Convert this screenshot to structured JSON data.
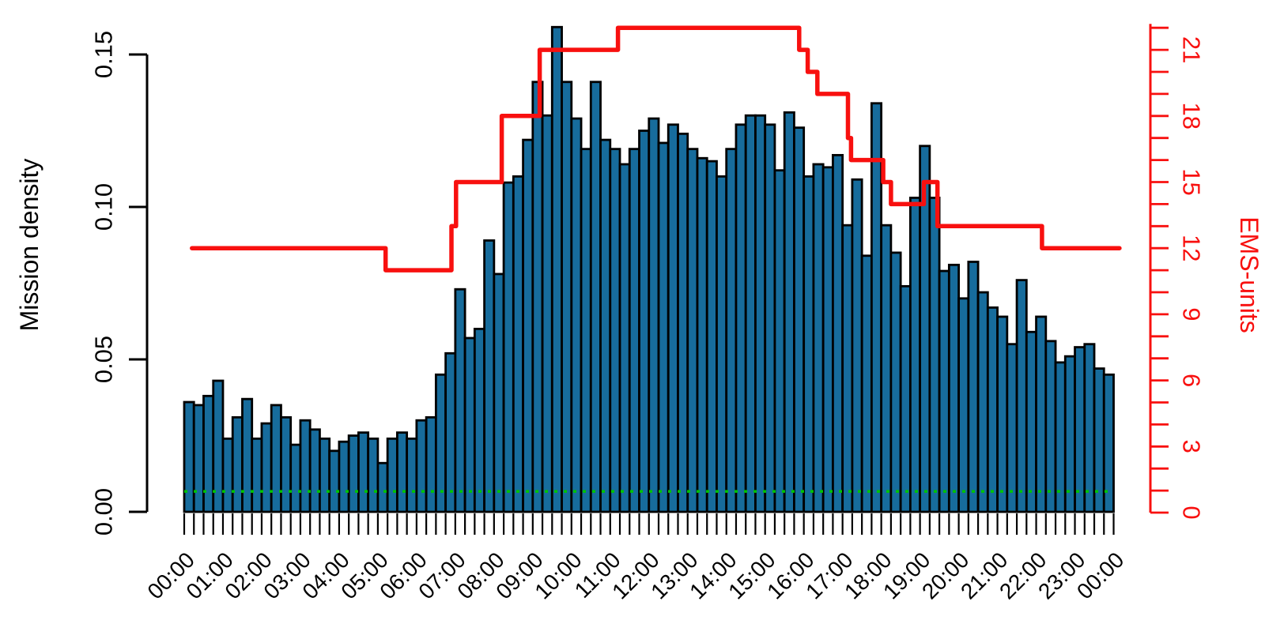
{
  "chart_data": {
    "type": "bar",
    "title": "",
    "left_axis": {
      "label": "Mission density",
      "tick_labels": [
        "0.00",
        "0.05",
        "0.10",
        "0.15"
      ],
      "tick_values": [
        0,
        0.05,
        0.1,
        0.15
      ],
      "range": [
        0,
        0.15
      ]
    },
    "right_axis": {
      "label": "EMS-units",
      "labeled_ticks": [
        0,
        3,
        6,
        9,
        12,
        15,
        18,
        21
      ],
      "minor_tick_step": 1,
      "range": [
        0,
        22
      ]
    },
    "x_axis": {
      "hour_labels": [
        "00:00",
        "01:00",
        "02:00",
        "03:00",
        "04:00",
        "05:00",
        "06:00",
        "07:00",
        "08:00",
        "09:00",
        "10:00",
        "11:00",
        "12:00",
        "13:00",
        "14:00",
        "15:00",
        "16:00",
        "17:00",
        "18:00",
        "19:00",
        "20:00",
        "21:00",
        "22:00",
        "23:00",
        "00:00"
      ],
      "bars_per_hour": 4,
      "interval_minutes": 15
    },
    "bars": {
      "series_name": "Mission density",
      "values": [
        0.036,
        0.035,
        0.038,
        0.043,
        0.024,
        0.031,
        0.037,
        0.024,
        0.029,
        0.035,
        0.031,
        0.022,
        0.03,
        0.027,
        0.024,
        0.02,
        0.023,
        0.025,
        0.026,
        0.024,
        0.016,
        0.024,
        0.026,
        0.024,
        0.03,
        0.031,
        0.045,
        0.052,
        0.073,
        0.057,
        0.06,
        0.089,
        0.078,
        0.108,
        0.11,
        0.122,
        0.141,
        0.13,
        0.159,
        0.141,
        0.129,
        0.119,
        0.141,
        0.122,
        0.119,
        0.114,
        0.119,
        0.125,
        0.129,
        0.121,
        0.127,
        0.124,
        0.119,
        0.116,
        0.115,
        0.11,
        0.119,
        0.127,
        0.13,
        0.13,
        0.127,
        0.112,
        0.131,
        0.126,
        0.11,
        0.114,
        0.113,
        0.117,
        0.094,
        0.109,
        0.084,
        0.134,
        0.094,
        0.085,
        0.074,
        0.103,
        0.12,
        0.103,
        0.079,
        0.081,
        0.07,
        0.082,
        0.072,
        0.067,
        0.064,
        0.055,
        0.076,
        0.059,
        0.064,
        0.056,
        0.049,
        0.051,
        0.054,
        0.055,
        0.047,
        0.045
      ]
    },
    "ems_line": {
      "series_name": "EMS-units",
      "start_t": 0.2,
      "end_t": 24.15,
      "steps": [
        {
          "t": 0.2,
          "v": 12
        },
        {
          "t": 5.2,
          "v": 11
        },
        {
          "t": 6.9,
          "v": 13
        },
        {
          "t": 7.02,
          "v": 15
        },
        {
          "t": 8.2,
          "v": 18
        },
        {
          "t": 9.18,
          "v": 21
        },
        {
          "t": 11.2,
          "v": 22
        },
        {
          "t": 15.88,
          "v": 21
        },
        {
          "t": 16.1,
          "v": 20
        },
        {
          "t": 16.35,
          "v": 19
        },
        {
          "t": 17.14,
          "v": 17
        },
        {
          "t": 17.22,
          "v": 16
        },
        {
          "t": 18.05,
          "v": 15
        },
        {
          "t": 18.25,
          "v": 14
        },
        {
          "t": 19.1,
          "v": 15
        },
        {
          "t": 19.45,
          "v": 13
        },
        {
          "t": 22.15,
          "v": 12
        }
      ]
    },
    "reference_line": {
      "value": 0.0067,
      "style": "dotted"
    },
    "legend_position": "none",
    "grid": false,
    "colors": {
      "bar_fill": "#176C9C",
      "bar_stroke": "#000000",
      "ems_red": "#F8100F",
      "reference_green": "#00C300",
      "axis_black": "#000000"
    }
  }
}
